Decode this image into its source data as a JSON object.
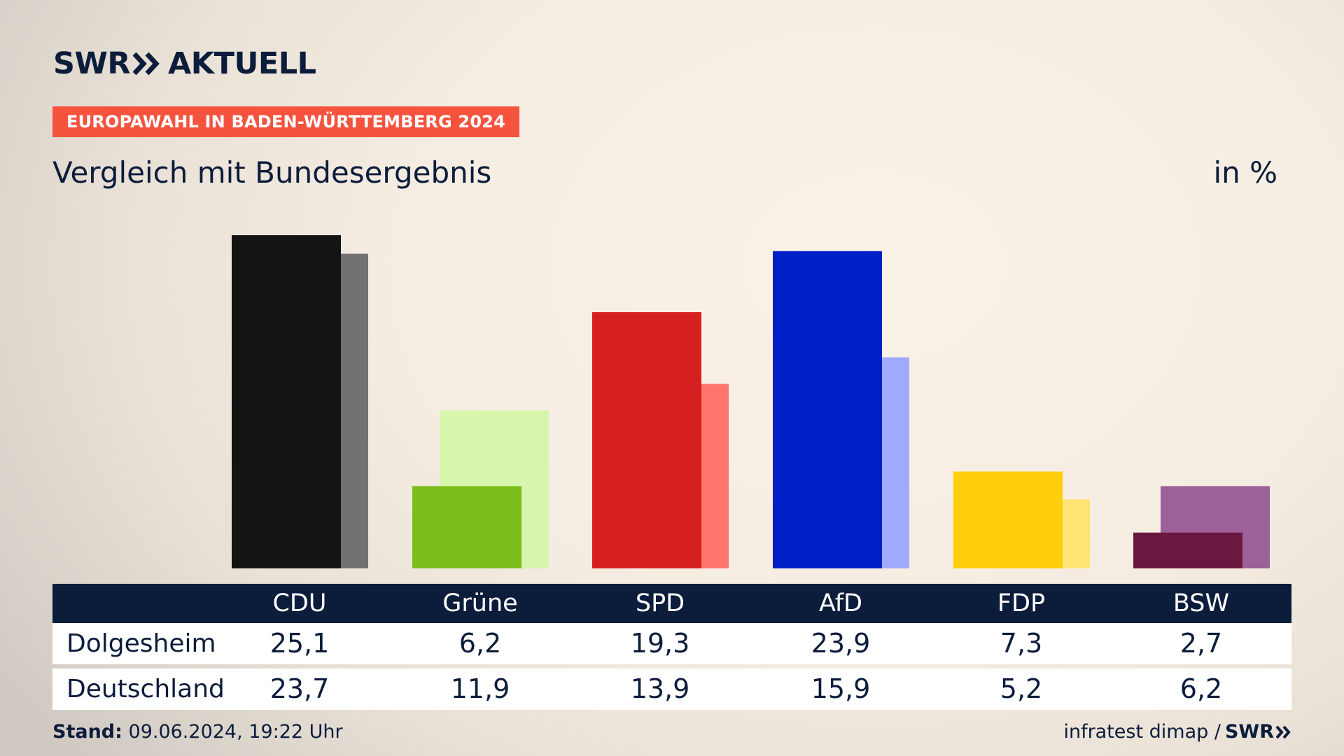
{
  "brand": {
    "swr": "SWR",
    "aktuell": "AKTUELL"
  },
  "tag": "EUROPAWAHL IN BADEN-WÜRTTEMBERG 2024",
  "subtitle": "Vergleich mit Bundesergebnis",
  "unit": "in %",
  "chart_data": {
    "type": "bar",
    "categories": [
      "CDU",
      "Grüne",
      "SPD",
      "AfD",
      "FDP",
      "BSW"
    ],
    "series": [
      {
        "name": "Dolgesheim",
        "values": [
          25.1,
          6.2,
          19.3,
          23.9,
          7.3,
          2.7
        ]
      },
      {
        "name": "Deutschland",
        "values": [
          23.7,
          11.9,
          13.9,
          15.9,
          5.2,
          6.2
        ]
      }
    ],
    "display": {
      "Dolgesheim": [
        "25,1",
        "6,2",
        "19,3",
        "23,9",
        "7,3",
        "2,7"
      ],
      "Deutschland": [
        "23,7",
        "11,9",
        "13,9",
        "15,9",
        "5,2",
        "6,2"
      ]
    },
    "colors_primary": [
      "#141414",
      "#7abf1c",
      "#d61f1f",
      "#0020c7",
      "#ffce0c",
      "#6b1840"
    ],
    "colors_secondary": [
      "#727170",
      "#d8f5ad",
      "#ff756e",
      "#a0aaff",
      "#ffe475",
      "#9b6198"
    ],
    "ylim": [
      0,
      25.1
    ]
  },
  "footer": {
    "stand_label": "Stand:",
    "stand_value": "09.06.2024, 19:22 Uhr",
    "source": "infratest dimap /",
    "source_brand": "SWR"
  }
}
